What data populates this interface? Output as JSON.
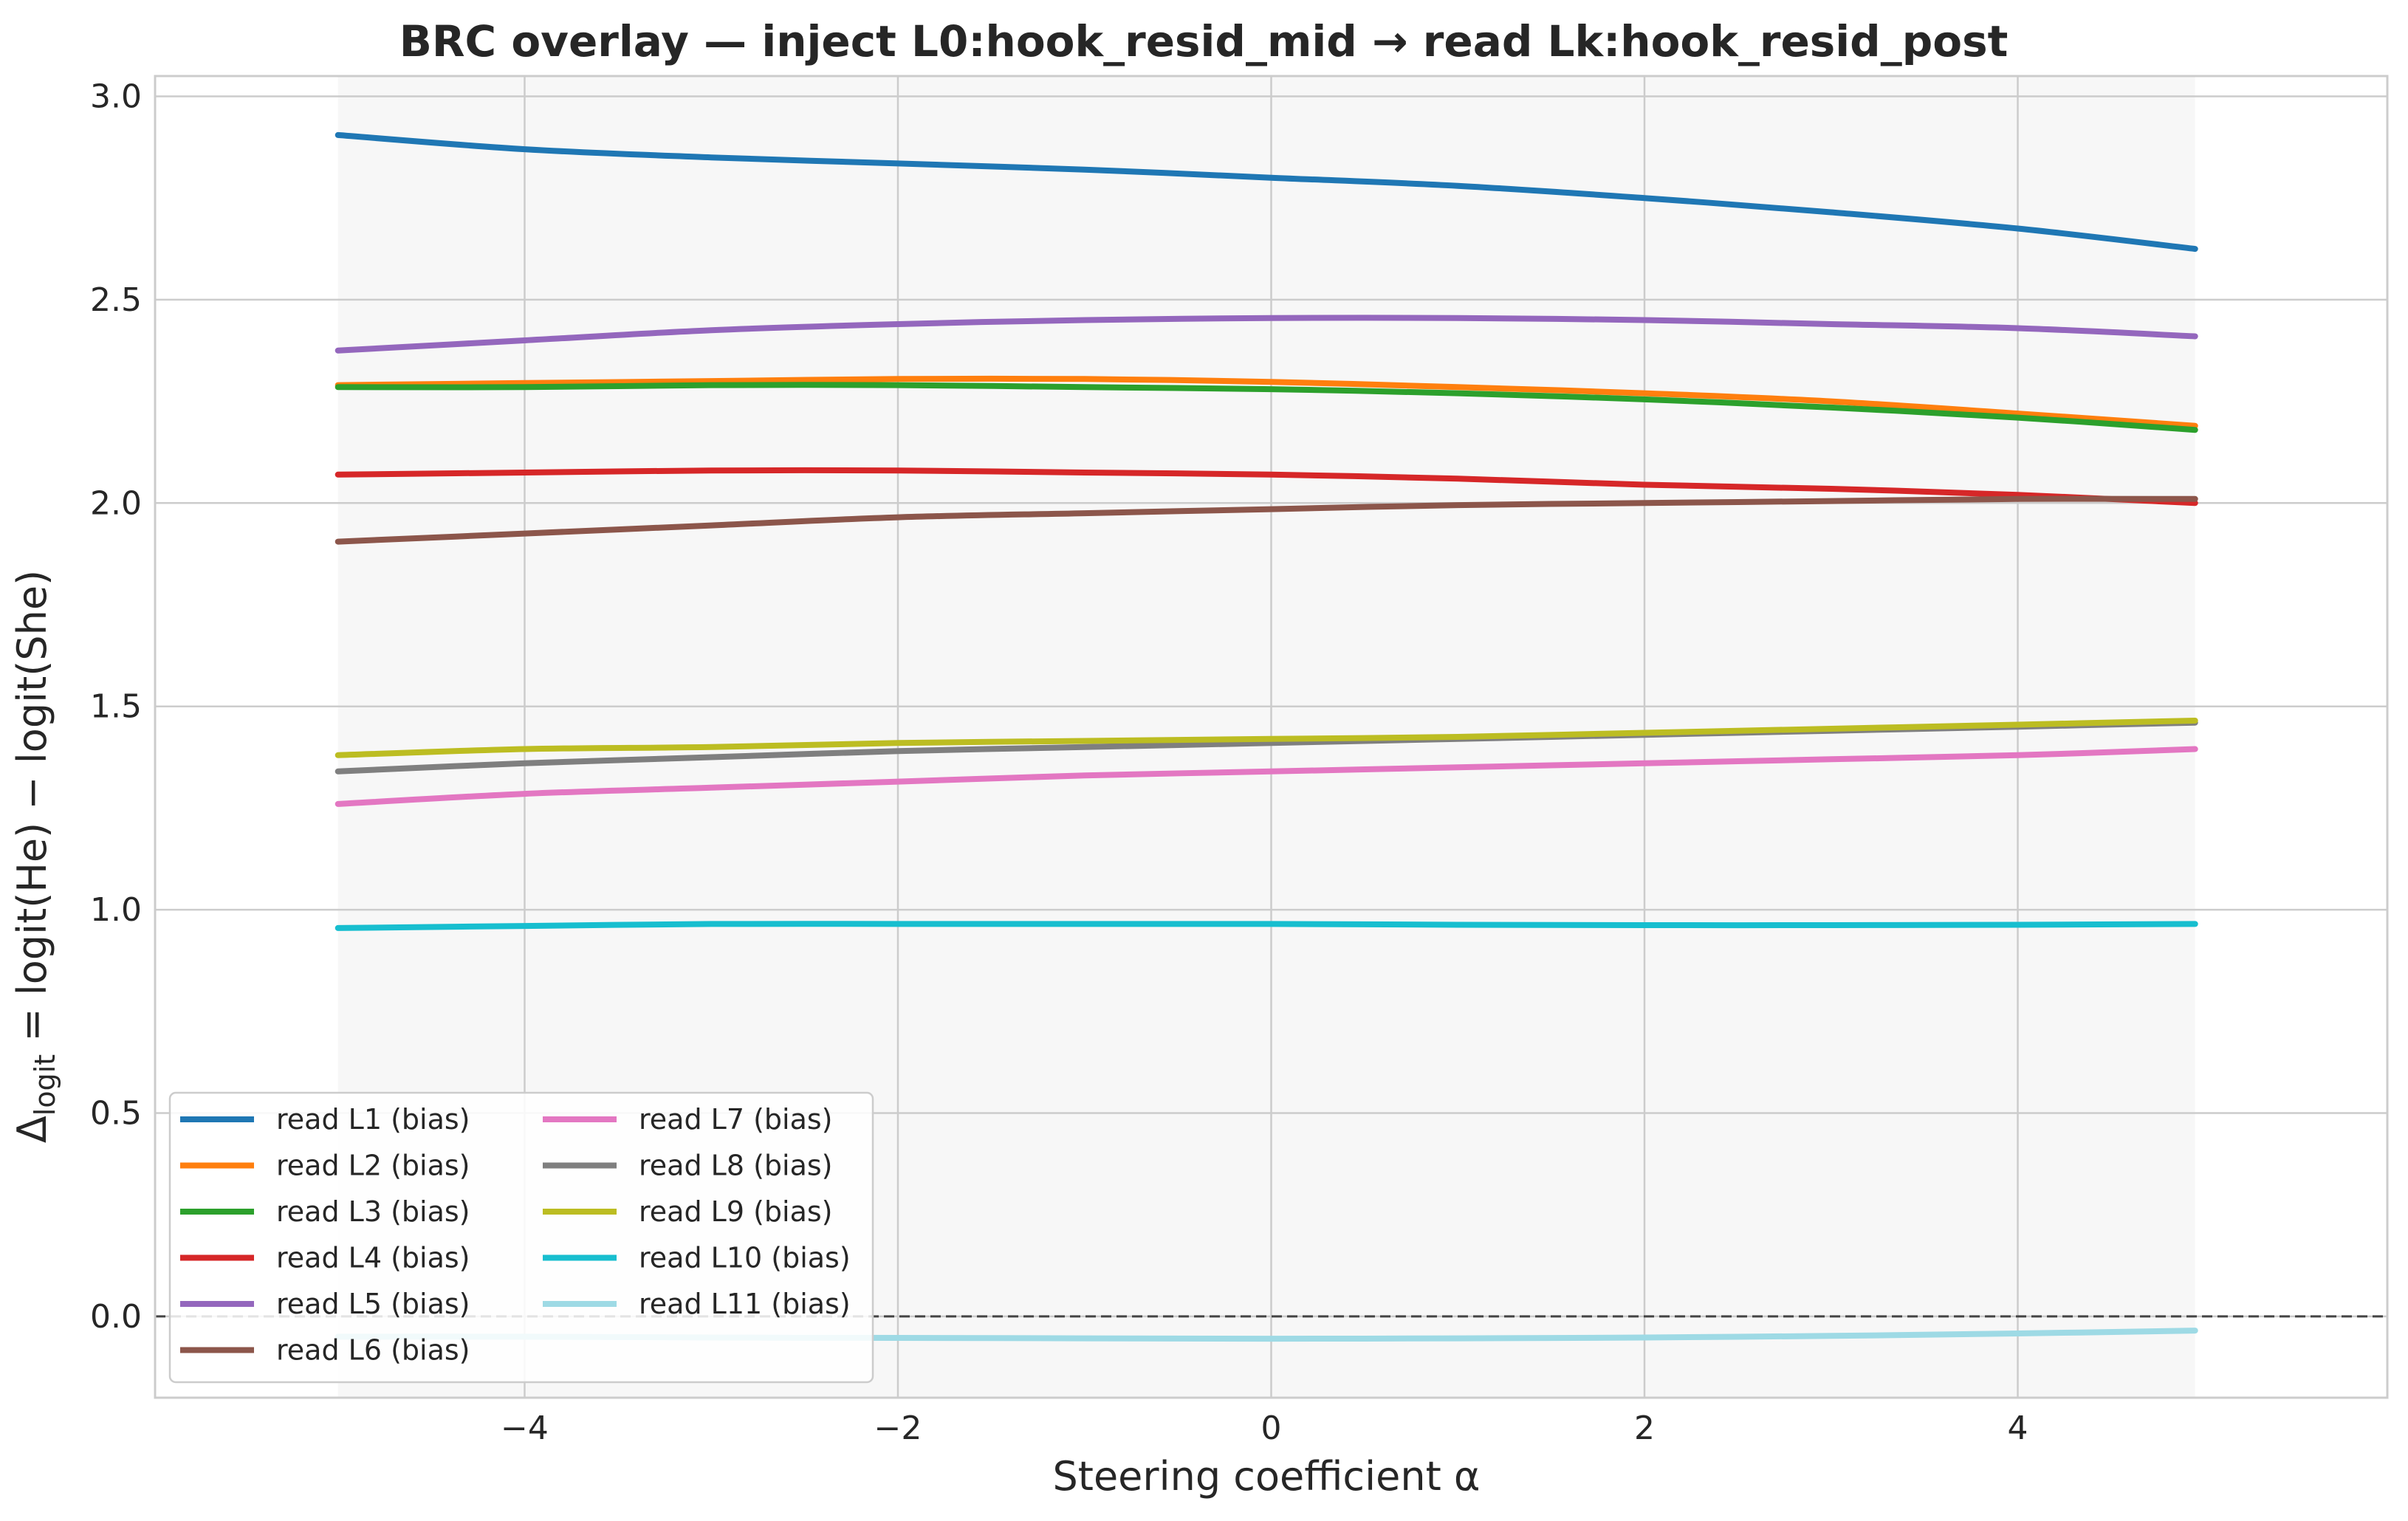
{
  "chart_data": {
    "type": "line",
    "title": "BRC overlay — inject L0:hook_resid_mid → read Lk:hook_resid_post",
    "xlabel": "Steering coefficient α",
    "ylabel": "Δlogit = logit(He) − logit(She)",
    "ylabel_parts": {
      "delta": "Δ",
      "sub": "logit",
      "rest": " = logit(He) − logit(She)"
    },
    "xlim": [
      -5.98,
      5.98
    ],
    "ylim": [
      -0.2,
      3.05
    ],
    "x_ticks": [
      -4,
      -2,
      0,
      2,
      4
    ],
    "x_tick_labels": [
      "−4",
      "−2",
      "0",
      "2",
      "4"
    ],
    "y_ticks": [
      0.0,
      0.5,
      1.0,
      1.5,
      2.0,
      2.5,
      3.0
    ],
    "y_tick_labels": [
      "0.0",
      "0.5",
      "1.0",
      "1.5",
      "2.0",
      "2.5",
      "3.0"
    ],
    "shaded_region": [
      -5,
      4.95
    ],
    "reference_line_y": 0.0,
    "grid": true,
    "legend_location": "lower left",
    "legend_columns": 2,
    "x": [
      -5,
      -4,
      -3,
      -2,
      -1,
      0,
      1,
      2,
      3,
      4,
      4.95
    ],
    "series": [
      {
        "name": "read L1 (bias)",
        "color": "#1f77b4",
        "values": [
          2.905,
          2.87,
          2.85,
          2.835,
          2.82,
          2.8,
          2.78,
          2.75,
          2.715,
          2.675,
          2.625
        ]
      },
      {
        "name": "read L2 (bias)",
        "color": "#ff7f0e",
        "values": [
          2.29,
          2.295,
          2.3,
          2.305,
          2.305,
          2.298,
          2.285,
          2.27,
          2.25,
          2.22,
          2.19
        ]
      },
      {
        "name": "read L3 (bias)",
        "color": "#2ca02c",
        "values": [
          2.285,
          2.285,
          2.29,
          2.29,
          2.285,
          2.28,
          2.27,
          2.255,
          2.235,
          2.21,
          2.18
        ]
      },
      {
        "name": "read L4 (bias)",
        "color": "#d62728",
        "values": [
          2.07,
          2.075,
          2.08,
          2.08,
          2.075,
          2.07,
          2.06,
          2.045,
          2.035,
          2.02,
          2.0
        ]
      },
      {
        "name": "read L5 (bias)",
        "color": "#9467bd",
        "values": [
          2.375,
          2.4,
          2.425,
          2.44,
          2.45,
          2.455,
          2.455,
          2.45,
          2.44,
          2.43,
          2.41
        ]
      },
      {
        "name": "read L6 (bias)",
        "color": "#8c564b",
        "values": [
          1.905,
          1.925,
          1.945,
          1.965,
          1.975,
          1.985,
          1.995,
          2.0,
          2.005,
          2.01,
          2.01
        ]
      },
      {
        "name": "read L7 (bias)",
        "color": "#e377c2",
        "values": [
          1.26,
          1.285,
          1.3,
          1.315,
          1.33,
          1.34,
          1.35,
          1.36,
          1.37,
          1.38,
          1.395
        ]
      },
      {
        "name": "read L8 (bias)",
        "color": "#7f7f7f",
        "values": [
          1.34,
          1.36,
          1.375,
          1.39,
          1.4,
          1.41,
          1.42,
          1.43,
          1.44,
          1.45,
          1.46
        ]
      },
      {
        "name": "read L9 (bias)",
        "color": "#bcbd22",
        "values": [
          1.38,
          1.395,
          1.4,
          1.41,
          1.415,
          1.42,
          1.425,
          1.435,
          1.445,
          1.455,
          1.465
        ]
      },
      {
        "name": "read L10 (bias)",
        "color": "#17becf",
        "values": [
          0.955,
          0.96,
          0.965,
          0.965,
          0.965,
          0.965,
          0.963,
          0.962,
          0.962,
          0.963,
          0.965
        ]
      },
      {
        "name": "read L11 (bias)",
        "color": "#9edae5",
        "values": [
          -0.05,
          -0.05,
          -0.052,
          -0.053,
          -0.054,
          -0.055,
          -0.054,
          -0.052,
          -0.048,
          -0.042,
          -0.035
        ]
      }
    ]
  }
}
